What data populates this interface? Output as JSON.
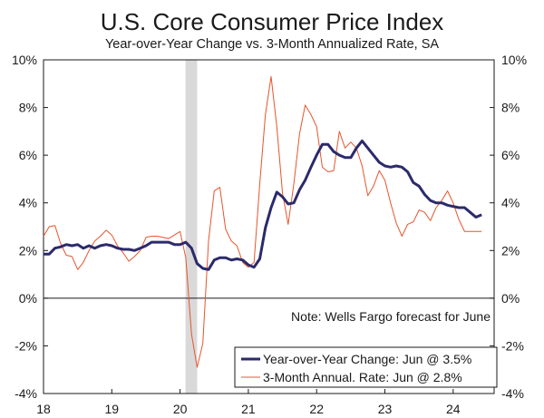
{
  "chart_data": {
    "type": "line",
    "title": "U.S. Core Consumer Price Index",
    "subtitle": "Year-over-Year Change vs. 3-Month Annualized Rate, SA",
    "note": "Note: Wells Fargo forecast for June",
    "x_ticks": [
      "18",
      "19",
      "20",
      "21",
      "22",
      "23",
      "24"
    ],
    "y_ticks": [
      "10%",
      "8%",
      "6%",
      "4%",
      "2%",
      "0%",
      "-2%",
      "-4%"
    ],
    "ylim": [
      -4,
      10
    ],
    "xlim": [
      2018.0,
      2024.6
    ],
    "recession_shading": [
      2020.08,
      2020.25
    ],
    "colors": {
      "yoy": "#2b2a6b",
      "three_month": "#e8542c",
      "shade": "#d9d9d9"
    },
    "series": [
      {
        "name": "Year-over-Year Change: Jun @ 3.5%",
        "key": "yoy",
        "x": [
          2018.0,
          2018.083,
          2018.167,
          2018.25,
          2018.333,
          2018.417,
          2018.5,
          2018.583,
          2018.667,
          2018.75,
          2018.833,
          2018.917,
          2019.0,
          2019.083,
          2019.167,
          2019.25,
          2019.333,
          2019.417,
          2019.5,
          2019.583,
          2019.667,
          2019.75,
          2019.833,
          2019.917,
          2020.0,
          2020.083,
          2020.167,
          2020.25,
          2020.333,
          2020.417,
          2020.5,
          2020.583,
          2020.667,
          2020.75,
          2020.833,
          2020.917,
          2021.0,
          2021.083,
          2021.167,
          2021.25,
          2021.333,
          2021.417,
          2021.5,
          2021.583,
          2021.667,
          2021.75,
          2021.833,
          2021.917,
          2022.0,
          2022.083,
          2022.167,
          2022.25,
          2022.333,
          2022.417,
          2022.5,
          2022.583,
          2022.667,
          2022.75,
          2022.833,
          2022.917,
          2023.0,
          2023.083,
          2023.167,
          2023.25,
          2023.333,
          2023.417,
          2023.5,
          2023.583,
          2023.667,
          2023.75,
          2023.833,
          2023.917,
          2024.0,
          2024.083,
          2024.167,
          2024.25,
          2024.333,
          2024.417
        ],
        "values": [
          1.85,
          1.85,
          2.1,
          2.15,
          2.25,
          2.2,
          2.25,
          2.1,
          2.2,
          2.1,
          2.2,
          2.25,
          2.2,
          2.1,
          2.05,
          2.05,
          2.0,
          2.1,
          2.2,
          2.35,
          2.35,
          2.35,
          2.35,
          2.25,
          2.25,
          2.35,
          2.1,
          1.45,
          1.25,
          1.2,
          1.6,
          1.7,
          1.7,
          1.6,
          1.65,
          1.6,
          1.4,
          1.3,
          1.65,
          2.95,
          3.8,
          4.45,
          4.25,
          3.95,
          4.0,
          4.55,
          4.95,
          5.5,
          6.0,
          6.45,
          6.45,
          6.15,
          6.0,
          5.9,
          5.9,
          6.3,
          6.6,
          6.3,
          6.0,
          5.7,
          5.55,
          5.5,
          5.55,
          5.5,
          5.3,
          4.85,
          4.7,
          4.35,
          4.1,
          4.0,
          4.0,
          3.9,
          3.85,
          3.8,
          3.8,
          3.6,
          3.4,
          3.5
        ]
      },
      {
        "name": "3-Month Annual. Rate: Jun @ 2.8%",
        "key": "three_month",
        "x": [
          2018.0,
          2018.083,
          2018.167,
          2018.25,
          2018.333,
          2018.417,
          2018.5,
          2018.583,
          2018.667,
          2018.75,
          2018.833,
          2018.917,
          2019.0,
          2019.083,
          2019.167,
          2019.25,
          2019.333,
          2019.417,
          2019.5,
          2019.583,
          2019.667,
          2019.75,
          2019.833,
          2019.917,
          2020.0,
          2020.083,
          2020.167,
          2020.25,
          2020.333,
          2020.417,
          2020.5,
          2020.583,
          2020.667,
          2020.75,
          2020.833,
          2020.917,
          2021.0,
          2021.083,
          2021.167,
          2021.25,
          2021.333,
          2021.417,
          2021.5,
          2021.583,
          2021.667,
          2021.75,
          2021.833,
          2021.917,
          2022.0,
          2022.083,
          2022.167,
          2022.25,
          2022.333,
          2022.417,
          2022.5,
          2022.583,
          2022.667,
          2022.75,
          2022.833,
          2022.917,
          2023.0,
          2023.083,
          2023.167,
          2023.25,
          2023.333,
          2023.417,
          2023.5,
          2023.583,
          2023.667,
          2023.75,
          2023.833,
          2023.917,
          2024.0,
          2024.083,
          2024.167,
          2024.25,
          2024.333,
          2024.417
        ],
        "values": [
          2.6,
          3.0,
          3.05,
          2.3,
          1.8,
          1.75,
          1.2,
          1.5,
          2.0,
          2.4,
          2.6,
          2.85,
          2.65,
          2.2,
          1.9,
          1.55,
          1.75,
          2.0,
          2.55,
          2.6,
          2.6,
          2.55,
          2.5,
          2.65,
          2.8,
          1.7,
          -1.5,
          -2.9,
          -1.9,
          2.4,
          4.5,
          4.65,
          2.9,
          2.4,
          2.2,
          1.5,
          1.3,
          1.5,
          4.8,
          7.7,
          9.3,
          7.2,
          4.4,
          3.1,
          4.8,
          6.9,
          8.1,
          7.7,
          7.2,
          5.5,
          5.3,
          5.35,
          7.0,
          6.3,
          6.55,
          6.3,
          5.55,
          4.3,
          4.7,
          5.35,
          4.95,
          4.0,
          3.15,
          2.6,
          3.1,
          3.2,
          3.7,
          3.6,
          3.25,
          3.8,
          4.1,
          4.5,
          4.0,
          3.3,
          2.8,
          2.8,
          2.8,
          2.8
        ]
      }
    ]
  }
}
